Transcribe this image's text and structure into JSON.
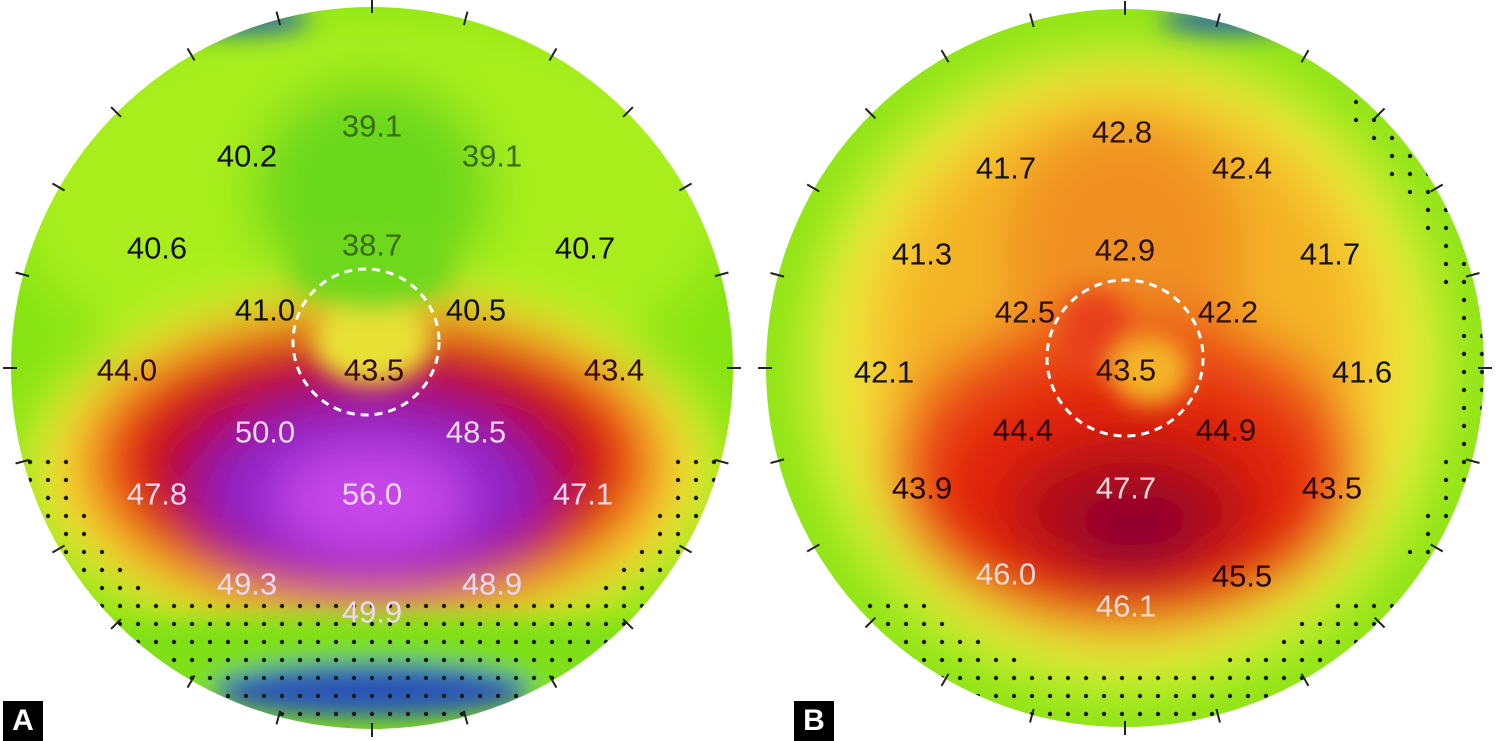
{
  "panels": [
    {
      "label": "A",
      "values": [
        {
          "text": "39.1",
          "color": "#3a6d10"
        },
        {
          "text": "40.2",
          "color": "#111111"
        },
        {
          "text": "39.1",
          "color": "#3a6d10"
        },
        {
          "text": "38.7",
          "color": "#3a6d10"
        },
        {
          "text": "40.6",
          "color": "#111111"
        },
        {
          "text": "40.7",
          "color": "#111111"
        },
        {
          "text": "41.0",
          "color": "#111111"
        },
        {
          "text": "40.5",
          "color": "#111111"
        },
        {
          "text": "44.0",
          "color": "#3a0a0a"
        },
        {
          "text": "43.5",
          "color": "#3a0a0a"
        },
        {
          "text": "43.4",
          "color": "#3a0a0a"
        },
        {
          "text": "50.0",
          "color": "#f0d8f2"
        },
        {
          "text": "48.5",
          "color": "#f0d8f2"
        },
        {
          "text": "47.8",
          "color": "#f0d8f2"
        },
        {
          "text": "56.0",
          "color": "#f0d8f2"
        },
        {
          "text": "47.1",
          "color": "#f0d8f2"
        },
        {
          "text": "49.3",
          "color": "#f0d8f2"
        },
        {
          "text": "48.9",
          "color": "#f0d8f2"
        },
        {
          "text": "49.9",
          "color": "#f0d8f2"
        }
      ]
    },
    {
      "label": "B",
      "values": [
        {
          "text": "42.8",
          "color": "#2a1000"
        },
        {
          "text": "41.7",
          "color": "#111111"
        },
        {
          "text": "42.4",
          "color": "#2a1000"
        },
        {
          "text": "41.3",
          "color": "#111111"
        },
        {
          "text": "42.9",
          "color": "#2a1000"
        },
        {
          "text": "41.7",
          "color": "#111111"
        },
        {
          "text": "42.5",
          "color": "#2a1000"
        },
        {
          "text": "42.2",
          "color": "#2a1000"
        },
        {
          "text": "42.1",
          "color": "#111111"
        },
        {
          "text": "43.5",
          "color": "#2a1000"
        },
        {
          "text": "41.6",
          "color": "#111111"
        },
        {
          "text": "44.4",
          "color": "#2a0000"
        },
        {
          "text": "44.9",
          "color": "#2a0000"
        },
        {
          "text": "43.9",
          "color": "#2a0000"
        },
        {
          "text": "47.7",
          "color": "#f6d8d8"
        },
        {
          "text": "43.5",
          "color": "#2a0000"
        },
        {
          "text": "46.0",
          "color": "#f6d8d8"
        },
        {
          "text": "45.5",
          "color": "#2a0000"
        },
        {
          "text": "46.1",
          "color": "#f6d8d8"
        }
      ]
    }
  ],
  "colors": {
    "green": "#9dea12",
    "yellow": "#f5f23a",
    "orange": "#f39a1c",
    "red": "#e21c10",
    "darkred": "#a8061e",
    "purple": "#8a22c8",
    "magenta": "#c23ee6",
    "blue": "#1a4fb0"
  }
}
